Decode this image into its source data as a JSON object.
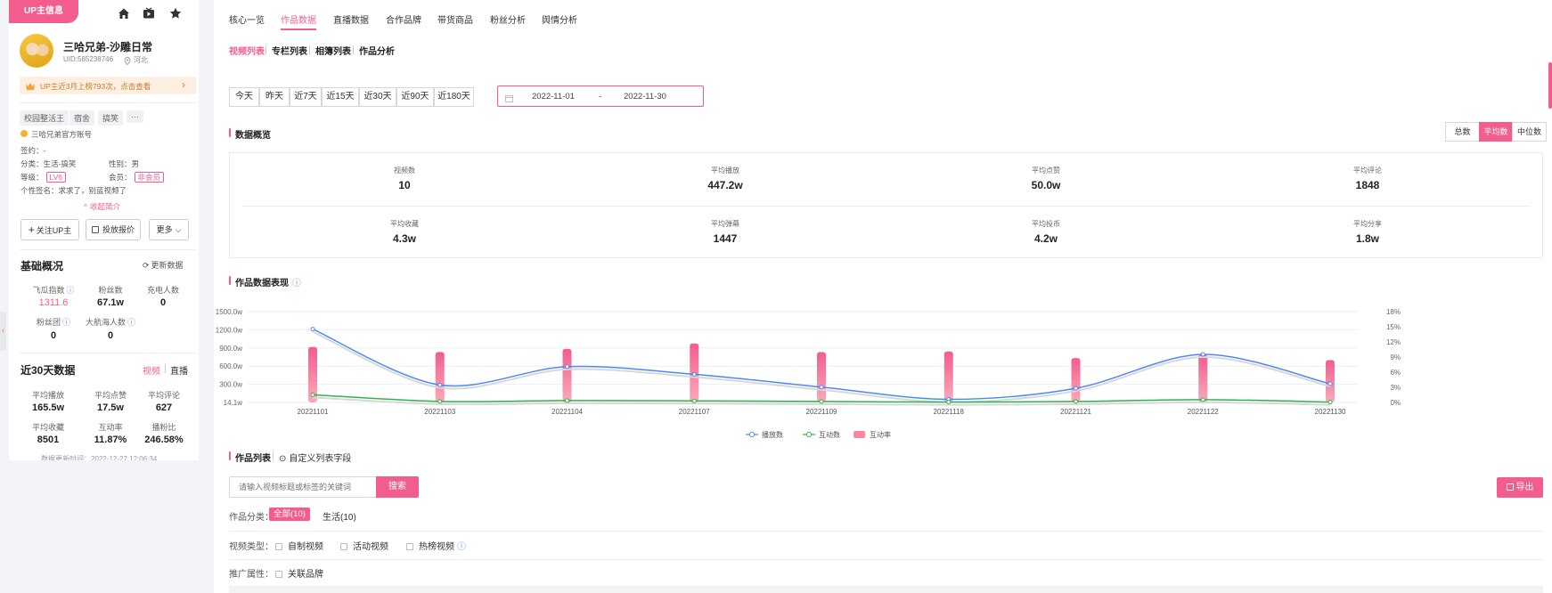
{
  "side": {
    "tag": "UP主信息",
    "name": "三哈兄弟-沙雕日常",
    "uid": "UID:585238746",
    "location": "河北",
    "notice": "UP主近3月上榜793次，点击查看",
    "tags": [
      "校园整活王",
      "宿舍",
      "搞笑",
      "···"
    ],
    "official": "三哈兄弟官方账号",
    "sign_label": "签约：",
    "sign_value": "-",
    "category_label": "分类：",
    "category_value": "生活-搞笑",
    "gender_label": "性别：",
    "gender_value": "男",
    "level_label": "等级：",
    "level_value": "LV6",
    "member_label": "会员：",
    "member_value": "非会员",
    "bio_label": "个性签名：",
    "bio_value": "求求了，别蓝视频了",
    "collapse": "收起简介",
    "follow_btn": "关注UP主",
    "ad_btn": "投放报价",
    "more_btn": "更多",
    "basic_title": "基础概况",
    "refresh": "更新数据",
    "stats": [
      {
        "label": "飞瓜指数",
        "value": "1311.6"
      },
      {
        "label": "粉丝数",
        "value": "67.1w"
      },
      {
        "label": "充电人数",
        "value": "0"
      },
      {
        "label": "粉丝团",
        "value": "0"
      },
      {
        "label": "大航海人数",
        "value": "0"
      }
    ],
    "recent_title": "近30天数据",
    "recent_video": "视频",
    "recent_live": "直播",
    "recent": [
      {
        "label": "平均播放",
        "value": "165.5w"
      },
      {
        "label": "平均点赞",
        "value": "17.5w"
      },
      {
        "label": "平均评论",
        "value": "627"
      },
      {
        "label": "平均收藏",
        "value": "8501"
      },
      {
        "label": "互动率",
        "value": "11.87%"
      },
      {
        "label": "播粉比",
        "value": "246.58%"
      }
    ],
    "update_time": "数据更新时间：2022-12-27 12:06:34"
  },
  "nav": [
    "核心一览",
    "作品数据",
    "直播数据",
    "合作品牌",
    "带货商品",
    "粉丝分析",
    "舆情分析"
  ],
  "subnav": [
    "视频列表",
    "专栏列表",
    "相簿列表",
    "作品分析"
  ],
  "ranges": [
    "今天",
    "昨天",
    "近7天",
    "近15天",
    "近30天",
    "近90天",
    "近180天"
  ],
  "date_start": "2022-11-01",
  "date_sep": "-",
  "date_end": "2022-11-30",
  "overview_title": "数据概览",
  "modes": [
    "总数",
    "平均数",
    "中位数"
  ],
  "overview": [
    {
      "label": "视频数",
      "value": "10"
    },
    {
      "label": "平均播放",
      "value": "447.2w"
    },
    {
      "label": "平均点赞",
      "value": "50.0w"
    },
    {
      "label": "平均评论",
      "value": "1848"
    },
    {
      "label": "平均收藏",
      "value": "4.3w"
    },
    {
      "label": "平均弹幕",
      "value": "1447"
    },
    {
      "label": "平均投币",
      "value": "4.2w"
    },
    {
      "label": "平均分享",
      "value": "1.8w"
    }
  ],
  "chart_title": "作品数据表现",
  "chart_data": {
    "type": "bar",
    "categories": [
      "20221101",
      "20221103",
      "20221104",
      "20221107",
      "20221109",
      "20221118",
      "20221121",
      "20221122",
      "20221130"
    ],
    "series": [
      {
        "name": "播放数",
        "type": "line",
        "axis": "left",
        "values": [
          1215,
          300,
          600,
          475,
          265,
          65,
          245,
          800,
          320
        ]
      },
      {
        "name": "互动数",
        "type": "line",
        "axis": "left",
        "values": [
          140,
          30,
          45,
          40,
          30,
          20,
          30,
          60,
          20
        ]
      },
      {
        "name": "互动率",
        "type": "bar",
        "axis": "right",
        "values": [
          11,
          10,
          10.6,
          11.7,
          10,
          10.1,
          8.8,
          9.5,
          8.4
        ]
      }
    ],
    "y_left_ticks": [
      "14.1w",
      "300.0w",
      "600.0w",
      "900.0w",
      "1200.0w",
      "1500.0w"
    ],
    "y_right_ticks": [
      "0%",
      "3%",
      "6%",
      "9%",
      "12%",
      "15%",
      "18%"
    ],
    "ylim_left": [
      14.1,
      1500
    ],
    "ylim_right": [
      0,
      18
    ],
    "legend": "bottom",
    "colors": {
      "播放数": "#4e87f6",
      "互动数": "#2eb34c",
      "互动率": "#f7889f"
    }
  },
  "list_title": "作品列表",
  "custom_fields": "自定义列表字段",
  "search_placeholder": "请输入视频标题或标签的关键词",
  "search_btn": "搜索",
  "export_btn": "导出",
  "cat_label": "作品分类：",
  "cat_all": "全部(10)",
  "cat_life": "生活(10)",
  "type_label": "视频类型：",
  "types": [
    "自制视频",
    "活动视频",
    "热榜视频"
  ],
  "promo_label": "推广属性：",
  "promo": "关联品牌",
  "accent": "#f25d8e"
}
